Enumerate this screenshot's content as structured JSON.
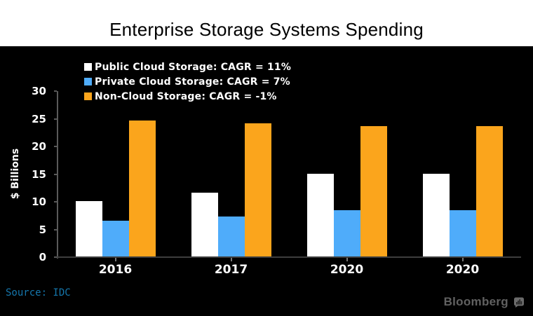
{
  "header": {
    "title": "Enterprise Storage Systems Spending"
  },
  "chart_data": {
    "type": "bar",
    "title": "Enterprise Storage Systems Spending",
    "categories": [
      "2016",
      "2017",
      "2020",
      "2020"
    ],
    "series": [
      {
        "name": "Public Cloud Storage: CAGR = 11%",
        "color": "#FFFFFF",
        "values": [
          10,
          11.5,
          15,
          15
        ]
      },
      {
        "name": "Private Cloud Storage: CAGR = 7%",
        "color": "#4FACFA",
        "values": [
          6.5,
          7.2,
          8.4,
          8.4
        ]
      },
      {
        "name": "Non-Cloud Storage: CAGR = -1%",
        "color": "#FBA51C",
        "values": [
          24.6,
          24,
          23.5,
          23.5
        ]
      }
    ],
    "xlabel": "",
    "ylabel": "$ Billions",
    "ylim": [
      0,
      30
    ],
    "yticks": [
      0,
      5,
      10,
      15,
      20,
      25,
      30
    ],
    "grid": false,
    "legend_position": "top-left",
    "plot_background": "#000000",
    "text_color": "#FFFFFF",
    "axis_color": "#5A5A5A"
  },
  "footer": {
    "source": "Source: IDC",
    "brand": "Bloomberg"
  }
}
